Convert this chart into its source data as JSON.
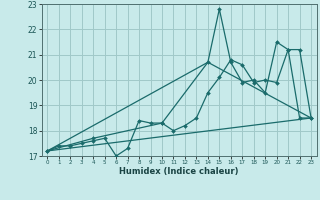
{
  "xlabel": "Humidex (Indice chaleur)",
  "ylabel": "",
  "background_color": "#c8eaea",
  "grid_color": "#a0c8c8",
  "line_color": "#1a6b6b",
  "xlim": [
    -0.5,
    23.5
  ],
  "ylim": [
    17,
    23
  ],
  "yticks": [
    17,
    18,
    19,
    20,
    21,
    22,
    23
  ],
  "xticks": [
    0,
    1,
    2,
    3,
    4,
    5,
    6,
    7,
    8,
    9,
    10,
    11,
    12,
    13,
    14,
    15,
    16,
    17,
    18,
    19,
    20,
    21,
    22,
    23
  ],
  "series": [
    {
      "x": [
        0,
        1,
        2,
        3,
        4,
        5,
        6,
        7,
        8,
        9,
        10,
        11,
        12,
        13,
        14,
        15,
        16,
        17,
        18,
        19,
        20,
        21,
        22,
        23
      ],
      "y": [
        17.2,
        17.4,
        17.4,
        17.5,
        17.6,
        17.7,
        17.0,
        17.3,
        18.4,
        18.3,
        18.3,
        18.0,
        18.2,
        18.5,
        19.5,
        20.1,
        20.8,
        20.6,
        19.9,
        20.0,
        19.9,
        21.2,
        21.2,
        18.5
      ]
    },
    {
      "x": [
        0,
        4,
        10,
        14,
        15,
        16,
        17,
        18,
        19,
        20,
        21,
        22,
        23
      ],
      "y": [
        17.2,
        17.7,
        18.3,
        20.7,
        22.8,
        20.7,
        19.9,
        20.0,
        19.5,
        21.5,
        21.2,
        18.5,
        18.5
      ]
    },
    {
      "x": [
        0,
        23
      ],
      "y": [
        17.2,
        18.5
      ]
    },
    {
      "x": [
        0,
        14,
        23
      ],
      "y": [
        17.2,
        20.7,
        18.5
      ]
    }
  ]
}
